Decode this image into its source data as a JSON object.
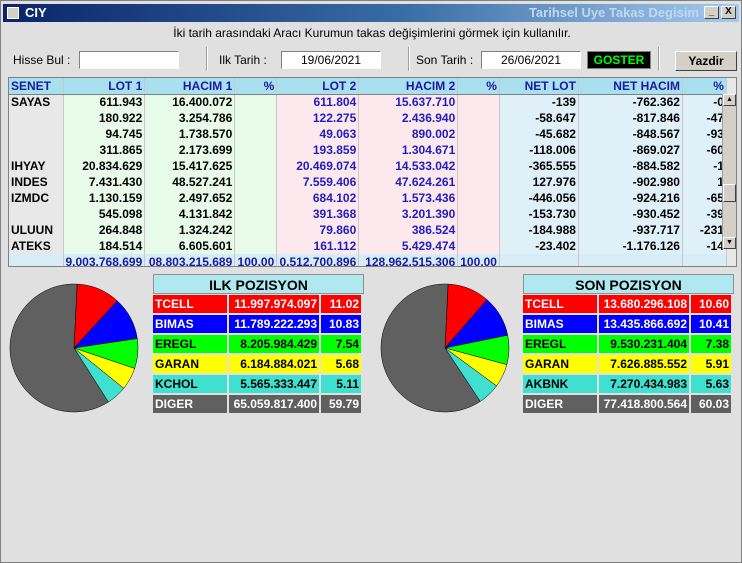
{
  "window": {
    "title": "CIY",
    "subtitle": "Tarihsel Uye Takas Degisim",
    "minimize": "_",
    "close": "X"
  },
  "hint": "İki tarih arasındaki  Aracı Kurumun takas değişimlerini görmek için kullanılır.",
  "filters": {
    "hisse_label": "Hisse Bul :",
    "hisse_value": "",
    "ilk_label": "Ilk Tarih :",
    "ilk_value": "19/06/2021",
    "son_label": "Son Tarih :",
    "son_value": "26/06/2021",
    "goster": "GOSTER",
    "yazdir": "Yazdir"
  },
  "table": {
    "headers": [
      "SENET",
      "LOT 1",
      "HACIM 1",
      "%",
      "LOT 2",
      "HACIM 2",
      "%",
      "NET LOT",
      "NET HACIM",
      "%"
    ],
    "rows": [
      [
        "SAYAS",
        "611.943",
        "16.400.072",
        "",
        "611.804",
        "15.637.710",
        "",
        "-139",
        "-762.362",
        "-0"
      ],
      [
        "",
        "180.922",
        "3.254.786",
        "",
        "122.275",
        "2.436.940",
        "",
        "-58.647",
        "-817.846",
        "-47"
      ],
      [
        "",
        "94.745",
        "1.738.570",
        "",
        "49.063",
        "890.002",
        "",
        "-45.682",
        "-848.567",
        "-93"
      ],
      [
        "",
        "311.865",
        "2.173.699",
        "",
        "193.859",
        "1.304.671",
        "",
        "-118.006",
        "-869.027",
        "-60"
      ],
      [
        "IHYAY",
        "20.834.629",
        "15.417.625",
        "",
        "20.469.074",
        "14.533.042",
        "",
        "-365.555",
        "-884.582",
        "-1"
      ],
      [
        "INDES",
        "7.431.430",
        "48.527.241",
        "",
        "7.559.406",
        "47.624.261",
        "",
        "127.976",
        "-902.980",
        "1"
      ],
      [
        "IZMDC",
        "1.130.159",
        "2.497.652",
        "",
        "684.102",
        "1.573.436",
        "",
        "-446.056",
        "-924.216",
        "-65"
      ],
      [
        "",
        "545.098",
        "4.131.842",
        "",
        "391.368",
        "3.201.390",
        "",
        "-153.730",
        "-930.452",
        "-39"
      ],
      [
        "ULUUN",
        "264.848",
        "1.324.242",
        "",
        "79.860",
        "386.524",
        "",
        "-184.988",
        "-937.717",
        "-231"
      ],
      [
        "ATEKS",
        "184.514",
        "6.605.601",
        "",
        "161.112",
        "5.429.474",
        "",
        "-23.402",
        "-1.176.126",
        "-14"
      ]
    ],
    "totals": [
      "",
      "9.003.768.699",
      "08.803.215.689",
      "100,00",
      "0.512.700.896",
      "128.962.515.306",
      "100,00",
      "",
      "",
      ""
    ]
  },
  "ilk": {
    "title": "ILK POZISYON",
    "rows": [
      {
        "name": "TCELL",
        "value": "11.997.974.097",
        "pct": "11.02",
        "color": "#ff0000",
        "frac": 0.1102
      },
      {
        "name": "BIMAS",
        "value": "11.789.222.293",
        "pct": "10.83",
        "color": "#0000ff",
        "frac": 0.1083
      },
      {
        "name": "EREGL",
        "value": "8.205.984.429",
        "pct": "7.54",
        "color": "#00ff00",
        "frac": 0.0754
      },
      {
        "name": "GARAN",
        "value": "6.184.884.021",
        "pct": "5.68",
        "color": "#ffff00",
        "frac": 0.0568
      },
      {
        "name": "KCHOL",
        "value": "5.565.333.447",
        "pct": "5.11",
        "color": "#40e0d0",
        "frac": 0.0511
      },
      {
        "name": "DIGER",
        "value": "65.059.817.400",
        "pct": "59.79",
        "color": "#606060",
        "frac": 0.5979
      }
    ]
  },
  "son": {
    "title": "SON POZISYON",
    "rows": [
      {
        "name": "TCELL",
        "value": "13.680.296.108",
        "pct": "10.60",
        "color": "#ff0000",
        "frac": 0.106
      },
      {
        "name": "BIMAS",
        "value": "13.435.866.692",
        "pct": "10.41",
        "color": "#0000ff",
        "frac": 0.1041
      },
      {
        "name": "EREGL",
        "value": "9.530.231.404",
        "pct": "7.38",
        "color": "#00ff00",
        "frac": 0.0738
      },
      {
        "name": "GARAN",
        "value": "7.626.885.552",
        "pct": "5.91",
        "color": "#ffff00",
        "frac": 0.0591
      },
      {
        "name": "AKBNK",
        "value": "7.270.434.983",
        "pct": "5.63",
        "color": "#40e0d0",
        "frac": 0.0563
      },
      {
        "name": "DIGER",
        "value": "77.418.800.564",
        "pct": "60.03",
        "color": "#606060",
        "frac": 0.6003
      }
    ]
  }
}
